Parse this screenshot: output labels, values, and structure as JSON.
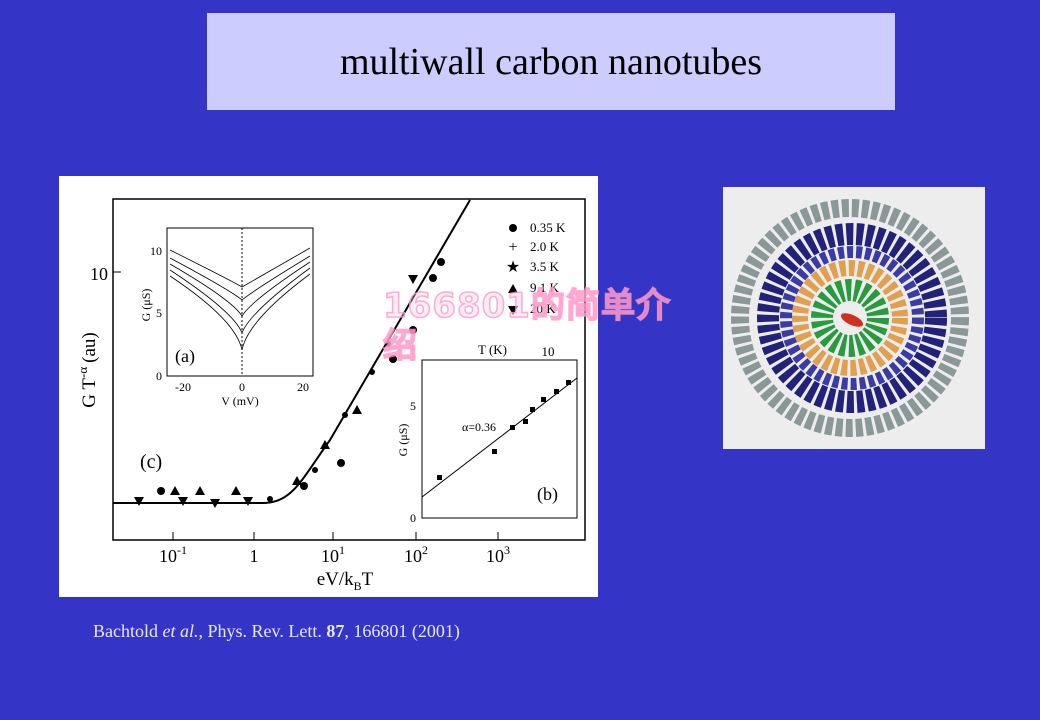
{
  "title": "multiwall carbon nanotubes",
  "figure": {
    "main": {
      "ylabel": "G T",
      "ylabel_sup": "-α",
      "ylabel_end": "(au)",
      "ytick": "10",
      "xticks": [
        {
          "base": "10",
          "exp": "-1"
        },
        {
          "base": "1"
        },
        {
          "base": "10",
          "exp": "1"
        },
        {
          "base": "10",
          "exp": "2"
        },
        {
          "base": "10",
          "exp": "3"
        }
      ],
      "xlabel": "eV/k",
      "xlabel_sub": "B",
      "xlabel_end": "T",
      "panel": "(c)",
      "legend": [
        "0.35 K",
        "2.0 K",
        "3.5 K",
        "9.1 K",
        "20 K"
      ]
    },
    "inset_a": {
      "yticks": [
        "0",
        "5",
        "10"
      ],
      "xticks": [
        "-20",
        "0",
        "20"
      ],
      "ylabel": "G (μS)",
      "xlabel": "V (mV)",
      "panel": "(a)"
    },
    "inset_b": {
      "yticks": [
        "0",
        "5"
      ],
      "top_label": "T (K)",
      "top_tick": "10",
      "ylabel": "G (μS)",
      "annotation": "α=0.36",
      "panel": "(b)"
    }
  },
  "watermark": "166801的简单介绍",
  "citation": {
    "author": "Bachtold",
    "etal": "et al.",
    "journal": ", Phys. Rev. Lett.",
    "volume": "87",
    "rest": ", 166801 (2001)"
  }
}
